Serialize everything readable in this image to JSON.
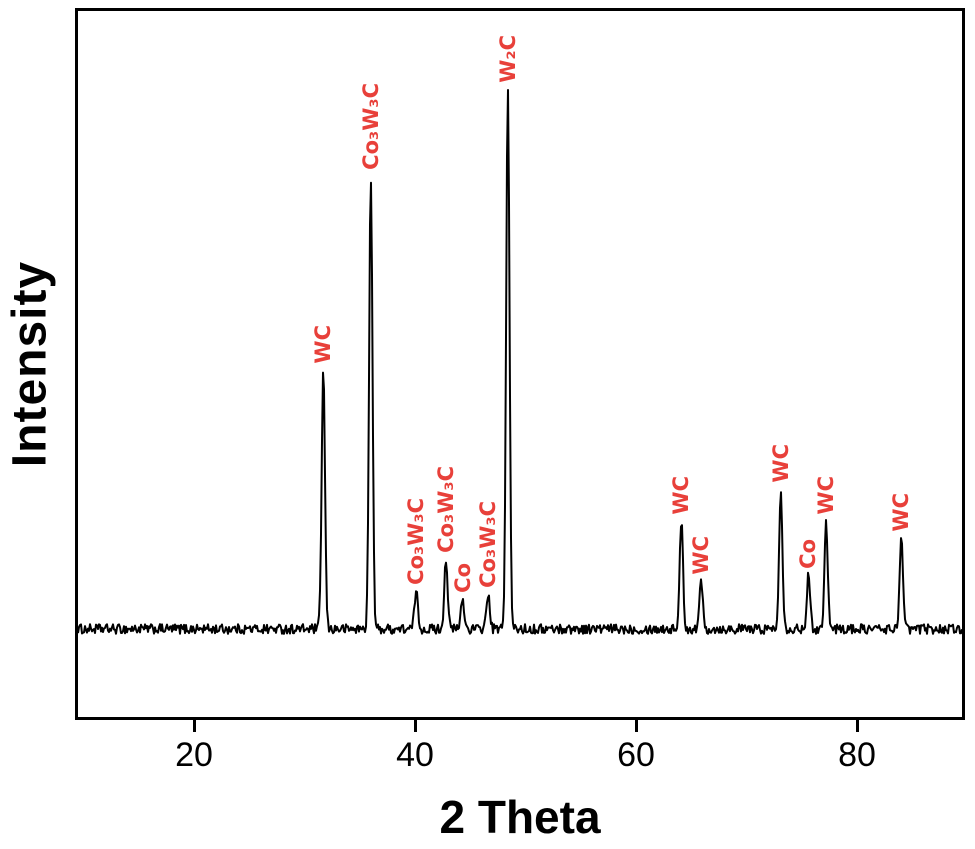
{
  "figure": {
    "y_axis_label": "Intensity",
    "x_axis_label": "2 Theta"
  },
  "colors": {
    "background": "#ffffff",
    "frame": "#000000",
    "trace": "#000000",
    "peak_label": "#e8403a"
  },
  "chart_data": {
    "type": "line",
    "title": "",
    "xlabel": "2 Theta",
    "ylabel": "Intensity",
    "xlim": [
      9.5,
      89.5
    ],
    "x_ticks": [
      20,
      40,
      60,
      80
    ],
    "grid": false,
    "legend": false,
    "y_axis_ticks": "none (arbitrary intensity units)",
    "baseline_intensity": 0,
    "noise_amplitude": 0.9,
    "peak_sigma_deg": 0.15,
    "intensity_scale_note": "intensities normalized so strongest peak (W2C) = 100",
    "peaks": [
      {
        "two_theta": 31.7,
        "intensity": 48,
        "label": "WC"
      },
      {
        "two_theta": 36.0,
        "intensity": 84,
        "label": "Co₃W₃C"
      },
      {
        "two_theta": 40.1,
        "intensity": 7,
        "label": "Co₃W₃C"
      },
      {
        "two_theta": 42.8,
        "intensity": 13,
        "label": "Co₃W₃C"
      },
      {
        "two_theta": 44.3,
        "intensity": 5.5,
        "label": "Co"
      },
      {
        "two_theta": 46.6,
        "intensity": 6.5,
        "label": "Co₃W₃C"
      },
      {
        "two_theta": 48.4,
        "intensity": 100,
        "label": "W₂C"
      },
      {
        "two_theta": 64.1,
        "intensity": 20,
        "label": "WC"
      },
      {
        "two_theta": 65.9,
        "intensity": 9,
        "label": "WC"
      },
      {
        "two_theta": 73.1,
        "intensity": 26,
        "label": "WC"
      },
      {
        "two_theta": 75.6,
        "intensity": 10,
        "label": "Co"
      },
      {
        "two_theta": 77.2,
        "intensity": 20,
        "label": "WC"
      },
      {
        "two_theta": 84.0,
        "intensity": 17,
        "label": "WC"
      }
    ]
  }
}
